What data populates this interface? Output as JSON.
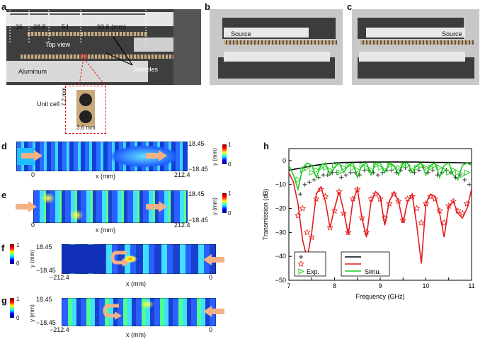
{
  "panels": {
    "a": {
      "label": "a",
      "dims": [
        "36",
        "28.8",
        "54",
        "93.6 (mm)"
      ],
      "top_view": "Top view",
      "aluminum": "Aluminum",
      "samples": "Samples",
      "unit_cell": "Unit cell",
      "dim_h": "7.2 mm",
      "dim_w": "3.6 mm"
    },
    "b": {
      "label": "b",
      "source": "Source"
    },
    "c": {
      "label": "c",
      "source": "Source"
    },
    "d": {
      "label": "d",
      "x_label": "x (mm)",
      "x_min": "0",
      "x_max": "212.4",
      "y_top": "18.45",
      "y_bot": "−18.45",
      "y_label": "y (mm)",
      "cb_top": "1",
      "cb_bot": "0"
    },
    "e": {
      "label": "e",
      "x_label": "x (mm)",
      "x_min": "0",
      "x_max": "212.4",
      "y_top": "18.45",
      "y_bot": "−18.45",
      "y_label": "y (mm)",
      "cb_top": "1",
      "cb_bot": "0"
    },
    "f": {
      "label": "f",
      "x_label": "x (mm)",
      "x_min": "−212.4",
      "x_max": "0",
      "y_top": "18.45",
      "y_bot": "−18.45",
      "y_label": "y (mm)",
      "cb_top": "1",
      "cb_bot": "0"
    },
    "g": {
      "label": "g",
      "x_label": "x (mm)",
      "x_min": "−212.4",
      "x_max": "0",
      "y_top": "18.45",
      "y_bot": "−18.45",
      "y_label": "y (mm)",
      "cb_top": "1",
      "cb_bot": "0"
    },
    "h": {
      "label": "h"
    }
  },
  "colors": {
    "black": "#000000",
    "red": "#e41a1c",
    "green": "#22cc22",
    "arrow": "#f4b183"
  },
  "chart_data": {
    "type": "line",
    "xlabel": "Frequency (GHz)",
    "ylabel": "Transmission (dB)",
    "xlim": [
      7,
      11
    ],
    "ylim": [
      -50,
      5
    ],
    "xticks": [
      7,
      7.5,
      8,
      8.5,
      9,
      9.5,
      10,
      10.5,
      11
    ],
    "yticks": [
      0,
      -10,
      -20,
      -30,
      -40,
      -50
    ],
    "legend": {
      "exp_label": "Exp.",
      "simu_label": "Simu."
    },
    "series": [
      {
        "name": "black-simu",
        "kind": "line",
        "color": "#000000",
        "x": [
          7,
          7.25,
          7.5,
          7.75,
          8,
          8.25,
          8.5,
          8.75,
          9,
          9.25,
          9.5,
          9.75,
          10,
          10.25,
          10.5,
          10.75,
          11
        ],
        "y": [
          -4,
          -3.2,
          -2.2,
          -1.5,
          -1.0,
          -0.8,
          -0.7,
          -0.6,
          -0.6,
          -0.6,
          -0.6,
          -0.6,
          -0.7,
          -0.8,
          -0.8,
          -0.9,
          -1
        ]
      },
      {
        "name": "red-simu",
        "kind": "line",
        "color": "#e41a1c",
        "x": [
          7,
          7.1,
          7.2,
          7.3,
          7.4,
          7.5,
          7.6,
          7.7,
          7.8,
          7.9,
          8.0,
          8.1,
          8.2,
          8.3,
          8.4,
          8.5,
          8.6,
          8.7,
          8.8,
          8.9,
          9.0,
          9.1,
          9.2,
          9.3,
          9.4,
          9.5,
          9.6,
          9.7,
          9.8,
          9.9,
          10.0,
          10.1,
          10.2,
          10.3,
          10.4,
          10.5,
          10.6,
          10.7,
          10.8,
          10.9,
          11.0
        ],
        "y": [
          -5,
          -9,
          -18,
          -33,
          -41,
          -30,
          -14,
          -11,
          -17,
          -28,
          -20,
          -13,
          -21,
          -31,
          -17,
          -12,
          -24,
          -32,
          -17,
          -13,
          -15,
          -27,
          -17,
          -13,
          -17,
          -26,
          -17,
          -14,
          -27,
          -43,
          -18,
          -14,
          -15,
          -22,
          -32,
          -19,
          -17,
          -22,
          -24,
          -20,
          -12
        ]
      },
      {
        "name": "green-simu",
        "kind": "line",
        "color": "#22cc22",
        "x": [
          7,
          7.1,
          7.2,
          7.3,
          7.4,
          7.5,
          7.6,
          7.7,
          7.8,
          7.9,
          8.0,
          8.1,
          8.2,
          8.3,
          8.4,
          8.5,
          8.6,
          8.7,
          8.8,
          8.9,
          9.0,
          9.1,
          9.2,
          9.3,
          9.4,
          9.5,
          9.6,
          9.7,
          9.8,
          9.9,
          10.0,
          10.1,
          10.2,
          10.3,
          10.4,
          10.5,
          10.6,
          10.7,
          10.8,
          10.9,
          11.0
        ],
        "y": [
          -2,
          -6,
          -12,
          -3,
          -1,
          -2,
          -7,
          -2,
          -1,
          -6,
          -3,
          -1,
          -5,
          -2,
          -1,
          -7,
          -2,
          -1,
          -6,
          -1,
          -1,
          -5,
          -1,
          -2,
          -6,
          -1,
          -1,
          -5,
          -2,
          -1,
          -6,
          -2,
          -1,
          -7,
          -2,
          -1,
          -6,
          -8,
          -2,
          -1,
          -2
        ]
      },
      {
        "name": "black-exp",
        "kind": "marker",
        "marker": "plus",
        "color": "#333333",
        "x": [
          7.25,
          7.35,
          7.45,
          7.55,
          7.65,
          7.75,
          7.85,
          7.95,
          8.05,
          8.15,
          8.25,
          8.35,
          8.45,
          8.55,
          8.65,
          8.75,
          8.85,
          8.95,
          9.05,
          9.15,
          9.25,
          9.35,
          9.45,
          9.55,
          9.65,
          9.75,
          9.85,
          9.95,
          10.05,
          10.15,
          10.25,
          10.35,
          10.45,
          10.55,
          10.65,
          10.75,
          10.85,
          10.95
        ],
        "y": [
          -14,
          -10,
          -9,
          -8,
          -7,
          -6,
          -6,
          -5,
          -5,
          -7,
          -6,
          -5,
          -5,
          -6,
          -4,
          -4,
          -5,
          -6,
          -5,
          -4,
          -4,
          -5,
          -4,
          -3,
          -4,
          -5,
          -4,
          -3,
          -5,
          -4,
          -6,
          -5,
          -4,
          -5,
          -7,
          -6,
          -8,
          -10
        ]
      },
      {
        "name": "red-exp",
        "kind": "marker",
        "marker": "star",
        "color": "#e41a1c",
        "x": [
          7.2,
          7.3,
          7.4,
          7.5,
          7.6,
          7.7,
          7.8,
          7.9,
          8.0,
          8.1,
          8.2,
          8.3,
          8.4,
          8.5,
          8.6,
          8.7,
          8.8,
          8.9,
          9.0,
          9.1,
          9.2,
          9.3,
          9.4,
          9.5,
          9.6,
          9.7,
          9.8,
          9.9,
          10.0,
          10.1,
          10.2,
          10.3,
          10.4,
          10.5,
          10.6,
          10.7,
          10.8,
          10.9
        ],
        "y": [
          -23,
          -20,
          -30,
          -32,
          -16,
          -12,
          -15,
          -28,
          -21,
          -13,
          -22,
          -30,
          -16,
          -12,
          -24,
          -30,
          -16,
          -14,
          -16,
          -24,
          -18,
          -14,
          -17,
          -25,
          -16,
          -15,
          -20,
          -26,
          -18,
          -15,
          -16,
          -21,
          -26,
          -19,
          -17,
          -21,
          -22,
          -18
        ]
      },
      {
        "name": "green-exp",
        "kind": "marker",
        "marker": "triangle",
        "color": "#22cc22",
        "x": [
          7.2,
          7.3,
          7.4,
          7.5,
          7.6,
          7.7,
          7.8,
          7.9,
          8.0,
          8.1,
          8.2,
          8.3,
          8.4,
          8.5,
          8.6,
          8.7,
          8.8,
          8.9,
          9.0,
          9.1,
          9.2,
          9.3,
          9.4,
          9.5,
          9.6,
          9.7,
          9.8,
          9.9,
          10.0,
          10.1,
          10.2,
          10.3,
          10.4,
          10.5,
          10.6,
          10.7,
          10.8,
          10.9
        ],
        "y": [
          -8,
          -4,
          -3,
          -5,
          -4,
          -3,
          -3,
          -4,
          -2,
          -5,
          -3,
          -2,
          -3,
          -4,
          -2,
          -3,
          -4,
          -2,
          -3,
          -4,
          -2,
          -3,
          -3,
          -2,
          -2,
          -4,
          -3,
          -2,
          -3,
          -3,
          -2,
          -3,
          -4,
          -5,
          -4,
          -5,
          -6,
          -5
        ]
      }
    ]
  }
}
